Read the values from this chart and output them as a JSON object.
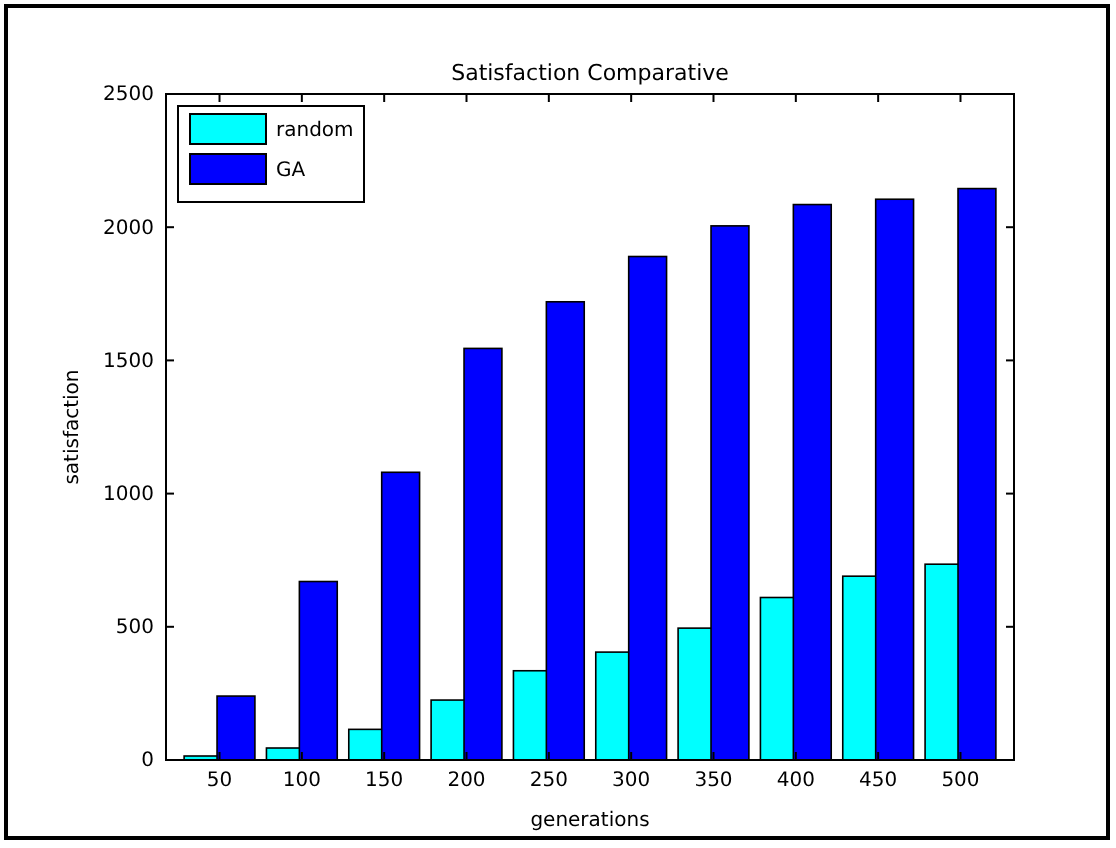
{
  "chart_data": {
    "type": "bar",
    "title": "Satisfaction Comparative",
    "xlabel": "generations",
    "ylabel": "satisfaction",
    "categories": [
      "50",
      "100",
      "150",
      "200",
      "250",
      "300",
      "350",
      "400",
      "450",
      "500"
    ],
    "series": [
      {
        "name": "random",
        "color": "#00ffff",
        "values": [
          15,
          45,
          115,
          225,
          335,
          405,
          495,
          610,
          690,
          735
        ]
      },
      {
        "name": "GA",
        "color": "#0000ff",
        "values": [
          240,
          670,
          1080,
          1545,
          1720,
          1890,
          2005,
          2085,
          2105,
          2145
        ]
      }
    ],
    "ylim": [
      0,
      2500
    ],
    "yticks": [
      0,
      500,
      1000,
      1500,
      2000,
      2500
    ],
    "grid": false,
    "legend": "top left"
  }
}
